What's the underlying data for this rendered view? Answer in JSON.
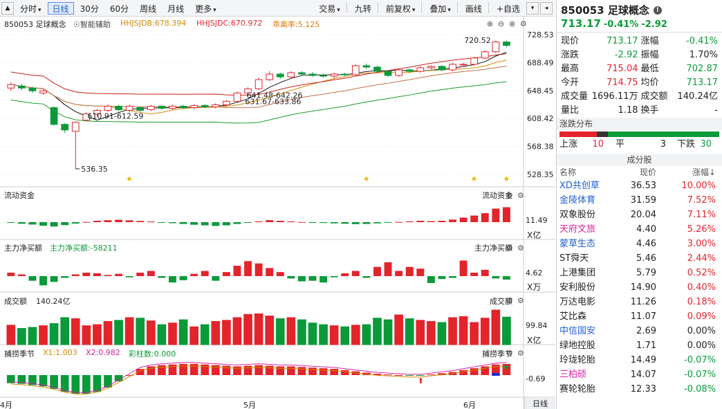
{
  "toolbar": {
    "tabs": [
      {
        "label": "分时",
        "caret": "▾"
      },
      {
        "label": "日线",
        "active": true
      },
      {
        "label": "30分"
      },
      {
        "label": "60分"
      },
      {
        "label": "周线"
      },
      {
        "label": "月线"
      },
      {
        "label": "更多",
        "caret": "▾"
      }
    ],
    "right_tabs": [
      {
        "label": "交易",
        "caret": "▾"
      },
      {
        "label": "九转"
      },
      {
        "label": "前复权",
        "caret": "▾"
      },
      {
        "label": "叠加",
        "caret": "▾"
      },
      {
        "label": "画线"
      },
      {
        "label": "+自选"
      }
    ]
  },
  "chart_info": {
    "name": "850053 足球概念",
    "assist": "智能辅助",
    "ma1": "HHJSJDB:678.394",
    "ma2": "HHJSJDC:670.972",
    "ma3": "乖离率:5.125"
  },
  "price_axis": [
    "728.53",
    "688.49",
    "648.45",
    "608.42",
    "568.38",
    "528.35"
  ],
  "annotations": {
    "high": "720.52",
    "low": "536.35",
    "a1": "610.91-612.59",
    "a2": "641.48-642.26",
    "a3": "631.67-633.86"
  },
  "panels": {
    "flow": {
      "title": "流动资金",
      "right": "流动资金",
      "val": "11.49",
      "unit": "X亿"
    },
    "main": {
      "title": "主力净买额",
      "value": "主力净买额:-58211",
      "right": "主力净买额",
      "val": "4.62",
      "unit": "X万"
    },
    "vol": {
      "title": "成交额",
      "value": "140.24亿",
      "right": "成交额",
      "val": "99.84",
      "unit": "X亿"
    },
    "season": {
      "title": "捕捞季节",
      "x1": "X1:1.003",
      "x2": "X2:0.982",
      "bars": "彩柱数:0.000",
      "right": "捕捞季节",
      "val": "-0.69"
    }
  },
  "x_labels": [
    "4月",
    "5月",
    "6月"
  ],
  "bottom_tab": "日线",
  "chart_data": {
    "type": "candlestick",
    "ylim": [
      528.35,
      728.53
    ],
    "high": 720.52,
    "low": 536.35,
    "candles": [
      [
        652,
        657,
        660,
        648
      ],
      [
        655,
        652,
        658,
        649
      ],
      [
        652,
        648,
        654,
        645
      ],
      [
        645,
        648,
        650,
        642
      ],
      [
        624,
        600,
        626,
        598
      ],
      [
        600,
        592,
        602,
        588
      ],
      [
        590,
        603,
        604,
        536
      ],
      [
        606,
        615,
        617,
        604
      ],
      [
        615,
        620,
        622,
        611
      ],
      [
        620,
        626,
        628,
        618
      ],
      [
        626,
        621,
        628,
        619
      ],
      [
        620,
        626,
        628,
        617
      ],
      [
        624,
        620,
        626,
        618
      ],
      [
        621,
        626,
        628,
        619
      ],
      [
        626,
        623,
        628,
        621
      ],
      [
        623,
        626,
        628,
        621
      ],
      [
        626,
        624,
        628,
        622
      ],
      [
        624,
        627,
        629,
        622
      ],
      [
        627,
        625,
        629,
        623
      ],
      [
        625,
        628,
        630,
        623
      ],
      [
        628,
        633,
        635,
        626
      ],
      [
        633,
        645,
        647,
        631
      ],
      [
        645,
        651,
        653,
        642
      ],
      [
        651,
        664,
        667,
        649
      ],
      [
        664,
        672,
        676,
        662
      ],
      [
        672,
        668,
        674,
        665
      ],
      [
        668,
        674,
        676,
        666
      ],
      [
        674,
        672,
        676,
        670
      ],
      [
        672,
        670,
        675,
        668
      ],
      [
        670,
        669,
        673,
        667
      ],
      [
        669,
        672,
        674,
        666
      ],
      [
        672,
        671,
        674,
        669
      ],
      [
        671,
        684,
        686,
        669
      ],
      [
        684,
        682,
        687,
        679
      ],
      [
        682,
        676,
        684,
        674
      ],
      [
        676,
        670,
        678,
        668
      ],
      [
        670,
        678,
        680,
        668
      ],
      [
        678,
        676,
        680,
        673
      ],
      [
        676,
        681,
        683,
        674
      ],
      [
        681,
        683,
        685,
        679
      ],
      [
        683,
        678,
        685,
        676
      ],
      [
        678,
        686,
        688,
        676
      ],
      [
        686,
        686,
        688,
        684
      ],
      [
        686,
        695,
        697,
        684
      ],
      [
        695,
        704,
        706,
        693
      ],
      [
        704,
        718,
        720,
        702
      ],
      [
        718,
        713,
        720,
        710
      ]
    ],
    "flow": [
      -0.3,
      -0.8,
      -1.2,
      -1.8,
      -2.2,
      -1.5,
      -0.7,
      0.1,
      0.7,
      1.0,
      1.2,
      0.9,
      0.6,
      0.3,
      -0.1,
      -0.5,
      -0.9,
      -1.3,
      -1.6,
      -1.9,
      -1.6,
      -0.9,
      -0.3,
      0.4,
      1.0,
      0.7,
      0.4,
      0.1,
      -0.2,
      -0.4,
      -0.6,
      -0.8,
      -1.0,
      -0.9,
      -0.6,
      -0.3,
      0.1,
      0.4,
      0.7,
      0.5,
      0.7,
      1.3,
      2.3,
      3.3,
      4.5,
      6.8,
      7.5
    ],
    "mainflow": [
      0.6,
      0.3,
      -0.8,
      -1.6,
      -1.0,
      -0.3,
      0.3,
      0.6,
      0.5,
      0.2,
      0.4,
      -0.2,
      0.6,
      0.9,
      -0.3,
      -1.1,
      -0.7,
      0.4,
      0.9,
      -0.8,
      0.7,
      1.8,
      2.6,
      2.2,
      1.4,
      0.7,
      -0.4,
      -0.9,
      -0.8,
      -1.1,
      -0.2,
      0.5,
      0.9,
      -0.3,
      1.6,
      2.4,
      0.9,
      1.6,
      1.3,
      -1.2,
      -0.5,
      -0.3,
      2.7,
      0.6,
      1.1,
      -0.4,
      -0.6
    ],
    "volume": [
      72,
      60,
      64,
      70,
      78,
      100,
      96,
      70,
      74,
      86,
      90,
      100,
      98,
      88,
      74,
      80,
      92,
      66,
      74,
      86,
      90,
      100,
      112,
      114,
      106,
      96,
      100,
      92,
      80,
      74,
      70,
      66,
      72,
      74,
      98,
      92,
      110,
      96,
      90,
      86,
      82,
      100,
      104,
      82,
      98,
      128,
      102
    ],
    "season": [
      -1.3,
      -1.4,
      -1.6,
      -1.8,
      -2.2,
      -2.7,
      -3.0,
      -3.0,
      -2.7,
      -2.0,
      -1.0,
      0.0,
      1.0,
      1.4,
      1.6,
      1.7,
      1.8,
      1.8,
      1.7,
      1.6,
      1.5,
      1.4,
      1.5,
      1.6,
      1.5,
      1.4,
      1.4,
      1.3,
      1.2,
      1.1,
      1.0,
      0.8,
      0.6,
      0.4,
      0.2,
      0.1,
      0.0,
      -0.1,
      -0.1,
      0.1,
      0.3,
      0.5,
      0.8,
      1.1,
      1.4,
      1.7,
      1.8
    ]
  },
  "quote": {
    "title": "850053 足球概念",
    "price": "713.17",
    "chg_pct": "-0.41%",
    "chg": "-2.92",
    "rows": [
      [
        {
          "k": "现价",
          "v": "713.17",
          "c": "green"
        },
        {
          "k": "涨幅",
          "v": "-0.41%",
          "c": "green"
        }
      ],
      [
        {
          "k": "涨跌",
          "v": "-2.92",
          "c": "green"
        },
        {
          "k": "振幅",
          "v": "1.70%",
          "c": ""
        }
      ],
      [
        {
          "k": "最高",
          "v": "715.04",
          "c": "red"
        },
        {
          "k": "最低",
          "v": "702.87",
          "c": "green"
        }
      ],
      [
        {
          "k": "今开",
          "v": "714.75",
          "c": "red"
        },
        {
          "k": "均价",
          "v": "713.17",
          "c": "green"
        }
      ],
      [
        {
          "k": "成交量",
          "v": "1696.11万",
          "c": ""
        },
        {
          "k": "成交额",
          "v": "140.24亿",
          "c": ""
        }
      ],
      [
        {
          "k": "量比",
          "v": "1.18",
          "c": ""
        },
        {
          "k": "换手",
          "v": "-",
          "c": ""
        }
      ]
    ]
  },
  "distribution": {
    "title": "涨跌分布",
    "up_label": "上涨",
    "up": "10",
    "flat_label": "平",
    "flat": "3",
    "down_label": "下跌",
    "down": "30"
  },
  "components": {
    "title": "成分股",
    "h_name": "名称",
    "h_price": "现价",
    "h_chg": "涨幅↓",
    "rows": [
      {
        "n": "XD共创草",
        "p": "36.53",
        "c": "10.00%",
        "nc": "blue",
        "cc": "red"
      },
      {
        "n": "金陵体育",
        "p": "31.59",
        "c": "7.52%",
        "nc": "blue",
        "cc": "red"
      },
      {
        "n": "双象股份",
        "p": "20.04",
        "c": "7.11%",
        "nc": "",
        "cc": "red"
      },
      {
        "n": "天府文旅",
        "p": "4.40",
        "c": "5.26%",
        "nc": "pink",
        "cc": "red"
      },
      {
        "n": "蒙草生态",
        "p": "4.46",
        "c": "3.00%",
        "nc": "blue",
        "cc": "red"
      },
      {
        "n": "ST舜天",
        "p": "5.46",
        "c": "2.44%",
        "nc": "",
        "cc": "red"
      },
      {
        "n": "上港集团",
        "p": "5.79",
        "c": "0.52%",
        "nc": "",
        "cc": "red"
      },
      {
        "n": "安利股份",
        "p": "14.90",
        "c": "0.40%",
        "nc": "",
        "cc": "red"
      },
      {
        "n": "万达电影",
        "p": "11.26",
        "c": "0.18%",
        "nc": "",
        "cc": "red"
      },
      {
        "n": "艾比森",
        "p": "11.07",
        "c": "0.09%",
        "nc": "",
        "cc": "red"
      },
      {
        "n": "中信国安",
        "p": "2.69",
        "c": "0.00%",
        "nc": "blue",
        "cc": ""
      },
      {
        "n": "绿地控股",
        "p": "1.71",
        "c": "0.00%",
        "nc": "",
        "cc": ""
      },
      {
        "n": "玲珑轮胎",
        "p": "14.49",
        "c": "-0.07%",
        "nc": "",
        "cc": "green"
      },
      {
        "n": "三柏硕",
        "p": "14.07",
        "c": "-0.07%",
        "nc": "pink",
        "cc": "green"
      },
      {
        "n": "赛轮轮胎",
        "p": "12.33",
        "c": "-0.08%",
        "nc": "",
        "cc": "green"
      }
    ]
  }
}
